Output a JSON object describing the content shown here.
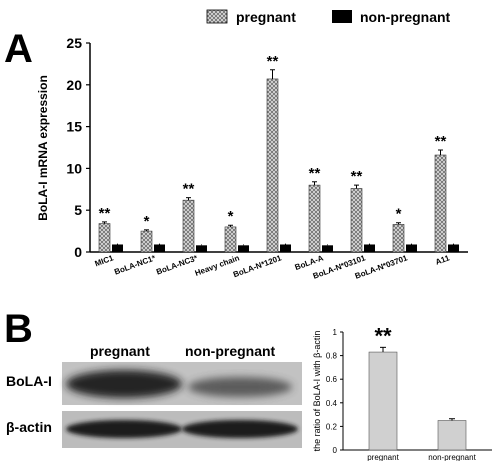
{
  "chart_data": [
    {
      "type": "bar",
      "panel_label": "A",
      "ylabel": "BoLA-I mRNA expression",
      "ylim": [
        0,
        25
      ],
      "yticks": [
        "0",
        "5",
        "10",
        "15",
        "20",
        "25"
      ],
      "legend_position": "top",
      "categories": [
        "MIC1",
        "BoLA-NC1*",
        "BoLA-NC3*",
        "Heavy chain",
        "BoLA-N*1201",
        "BoLA-A",
        "BoLA-N*03101",
        "BoLA-N*03701",
        "A11"
      ],
      "series": [
        {
          "name": "pregnant",
          "values": [
            3.4,
            2.5,
            6.2,
            3.0,
            20.7,
            8.0,
            7.6,
            3.3,
            11.6
          ],
          "errors": [
            0.2,
            0.15,
            0.3,
            0.2,
            1.1,
            0.4,
            0.4,
            0.2,
            0.6
          ]
        },
        {
          "name": "non-pregnant",
          "values": [
            0.9,
            0.9,
            0.8,
            0.8,
            0.9,
            0.8,
            0.9,
            0.9,
            0.9
          ],
          "errors": [
            0.1,
            0.1,
            0.1,
            0.1,
            0.1,
            0.1,
            0.1,
            0.1,
            0.1
          ]
        }
      ],
      "annotations": [
        "**",
        "*",
        "**",
        "*",
        "**",
        "**",
        "**",
        "*",
        "**"
      ]
    },
    {
      "type": "bar",
      "panel_label": "B",
      "ylabel": "the ratio of BoLA-I with β-actin",
      "ylim": [
        0,
        1
      ],
      "yticks": [
        "0",
        "0.2",
        "0.4",
        "0.6",
        "0.8",
        "1"
      ],
      "categories": [
        "pregnant",
        "non-pregnant"
      ],
      "values": [
        0.83,
        0.25
      ],
      "errors": [
        0.04,
        0.015
      ],
      "annotations": [
        "**",
        ""
      ]
    }
  ],
  "blot": {
    "column_labels": [
      "pregnant",
      "non-pregnant"
    ],
    "row_labels": [
      "BoLA-I",
      "β-actin"
    ]
  },
  "colors": {
    "pregnant_fill": "#d0d0d0",
    "non_pregnant_fill": "#000000",
    "blot_bg": "#c4c4c4",
    "band": "#2a2a2a"
  }
}
